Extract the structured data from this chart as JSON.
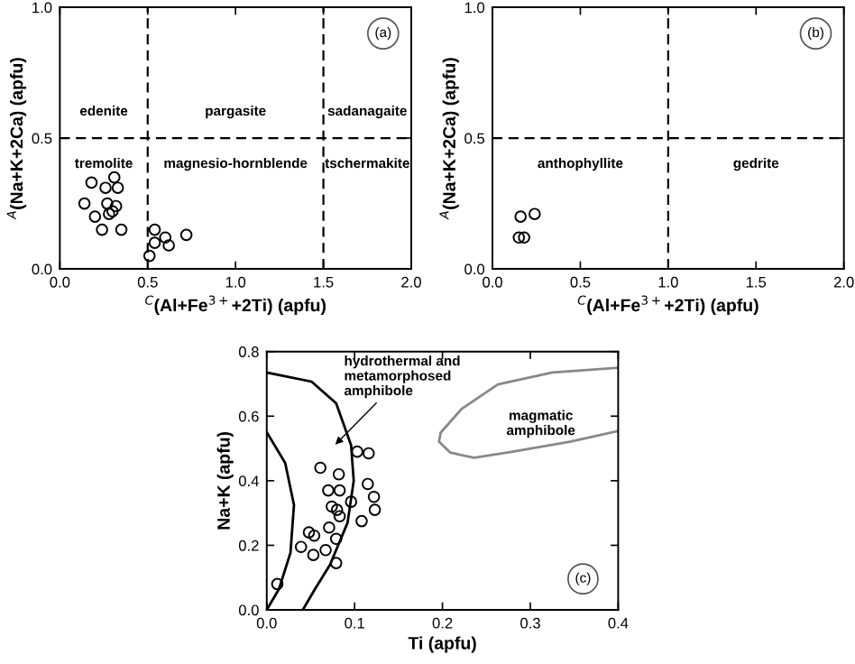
{
  "chart_data": [
    {
      "type": "scatter",
      "title": "(a)",
      "xlabel": "$^{C}$(Al+Fe$^{3+}$+2Ti) (apfu)",
      "ylabel": "$^{A}$(Na+K+2Ca) (apfu)",
      "xlim": [
        0,
        2
      ],
      "ylim": [
        0,
        1
      ],
      "xticks": [
        {
          "value": 0,
          "label": "0.0"
        },
        {
          "value": 0.5,
          "label": "0.5"
        },
        {
          "value": 1,
          "label": "1.0"
        },
        {
          "value": 1.5,
          "label": "1.5"
        },
        {
          "value": 2,
          "label": "2.0"
        }
      ],
      "yticks": [
        {
          "value": 0,
          "label": "0.0"
        },
        {
          "value": 0.5,
          "label": "0.5"
        },
        {
          "value": 1,
          "label": "1.0"
        }
      ],
      "series": [
        {
          "marker": "circle",
          "color": "#000000",
          "x": [
            0.18,
            0.14,
            0.2,
            0.24,
            0.26,
            0.31,
            0.33,
            0.27,
            0.28,
            0.3,
            0.32,
            0.35,
            0.51,
            0.54,
            0.54,
            0.6,
            0.62,
            0.72
          ],
          "values": [
            0.33,
            0.25,
            0.2,
            0.15,
            0.31,
            0.35,
            0.31,
            0.25,
            0.21,
            0.22,
            0.24,
            0.15,
            0.05,
            0.1,
            0.15,
            0.12,
            0.09,
            0.13
          ]
        }
      ],
      "ref_lines": [
        {
          "axis": "y",
          "value": 0.5,
          "line_style": "dashed",
          "color": "#000000"
        },
        {
          "axis": "x",
          "value": 0.5,
          "line_style": "dashed",
          "color": "#000000"
        },
        {
          "axis": "x",
          "value": 1.5,
          "line_style": "dashed",
          "color": "#000000"
        }
      ],
      "annotations": [
        "edenite",
        "pargasite",
        "sadanagaite",
        "tremolite",
        "magnesio-hornblende",
        "tschermakite"
      ]
    },
    {
      "type": "scatter",
      "title": "(b)",
      "xlabel": "$^{C}$(Al+Fe$^{3+}$+2Ti) (apfu)",
      "ylabel": "$^{A}$(Na+K+2Ca) (apfu)",
      "xlim": [
        0,
        2
      ],
      "ylim": [
        0,
        1
      ],
      "xticks": [
        {
          "value": 0,
          "label": "0.0"
        },
        {
          "value": 0.5,
          "label": "0.5"
        },
        {
          "value": 1,
          "label": "1.0"
        },
        {
          "value": 1.5,
          "label": "1.5"
        },
        {
          "value": 2,
          "label": "2.0"
        }
      ],
      "yticks": [
        {
          "value": 0,
          "label": "0.0"
        },
        {
          "value": 0.5,
          "label": "0.5"
        },
        {
          "value": 1,
          "label": "1.0"
        }
      ],
      "series": [
        {
          "marker": "circle",
          "color": "#000000",
          "x": [
            0.16,
            0.24,
            0.15,
            0.18
          ],
          "values": [
            0.2,
            0.21,
            0.12,
            0.12
          ]
        }
      ],
      "ref_lines": [
        {
          "axis": "y",
          "value": 0.5,
          "line_style": "dashed",
          "color": "#000000"
        },
        {
          "axis": "x",
          "value": 1.0,
          "line_style": "dashed",
          "color": "#000000"
        }
      ],
      "annotations": [
        "anthophyllite",
        "gedrite"
      ]
    },
    {
      "type": "scatter",
      "title": "(c)",
      "xlabel": "Ti (apfu)",
      "ylabel": "Na+K (apfu)",
      "xlim": [
        0,
        0.4
      ],
      "ylim": [
        0,
        0.8
      ],
      "xticks": [
        {
          "value": 0,
          "label": "0.0"
        },
        0.1,
        0.2,
        0.3,
        0.4
      ],
      "yticks": [
        {
          "value": 0,
          "label": "0.0"
        },
        0.2,
        0.4,
        0.6,
        0.8
      ],
      "series": [
        {
          "marker": "circle",
          "color": "#000000",
          "x": [
            0.012,
            0.039,
            0.048,
            0.054,
            0.053,
            0.061,
            0.07,
            0.071,
            0.074,
            0.067,
            0.079,
            0.079,
            0.082,
            0.083,
            0.08,
            0.083,
            0.096,
            0.103,
            0.116,
            0.108,
            0.115,
            0.122,
            0.123
          ],
          "values": [
            0.08,
            0.195,
            0.24,
            0.23,
            0.17,
            0.44,
            0.37,
            0.255,
            0.32,
            0.185,
            0.22,
            0.145,
            0.42,
            0.37,
            0.31,
            0.29,
            0.335,
            0.49,
            0.485,
            0.275,
            0.39,
            0.35,
            0.31
          ]
        },
        {
          "type": "line",
          "marker": "none",
          "color": "#000000",
          "x": [
            0,
            0.051,
            0.079,
            0.096,
            0.099,
            0.092,
            0.072,
            0.055,
            0.041
          ],
          "values": [
            0.735,
            0.707,
            0.64,
            0.51,
            0.4,
            0.27,
            0.14,
            0.065,
            0
          ]
        },
        {
          "type": "line",
          "marker": "none",
          "color": "#000000",
          "x": [
            0,
            0.021,
            0.031,
            0.027,
            0.014,
            0
          ],
          "values": [
            0.55,
            0.455,
            0.325,
            0.177,
            0.065,
            0
          ]
        },
        {
          "type": "line",
          "marker": "none",
          "color": "#888888",
          "x": [
            0.4,
            0.325,
            0.263,
            0.222,
            0.198,
            0.196,
            0.209,
            0.236,
            0.277,
            0.345,
            0.4
          ],
          "values": [
            0.75,
            0.735,
            0.698,
            0.623,
            0.549,
            0.521,
            0.487,
            0.471,
            0.489,
            0.521,
            0.554
          ]
        }
      ],
      "annotations": [
        "hydrothermal and\nmetamorphosed\namphibole",
        "magmatic\namphibole"
      ]
    }
  ]
}
